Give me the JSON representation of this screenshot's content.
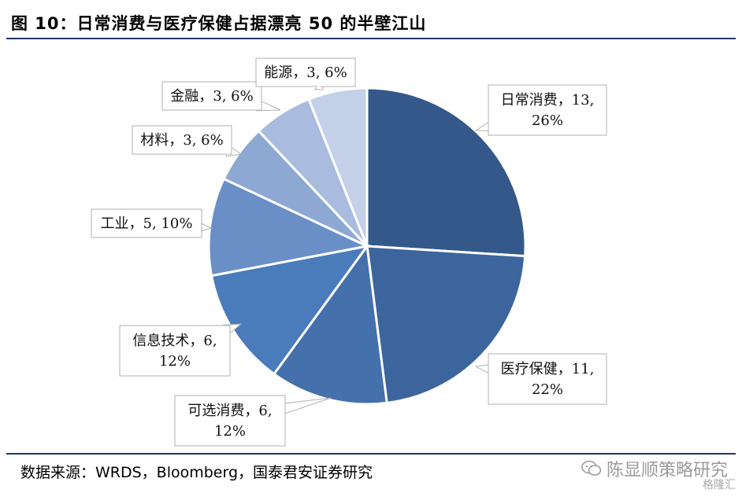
{
  "header": {
    "title": "图 10：日常消费与医疗保健占据漂亮 50 的半壁江山"
  },
  "footer": {
    "source": "数据来源：WRDS，Bloomberg，国泰君安证券研究",
    "watermark": "陈显顺策略研究",
    "watermark2": "格隆汇"
  },
  "chart_data": {
    "type": "pie",
    "start_angle_deg": 0,
    "direction": "clockwise",
    "slices": [
      {
        "label_line1": "日常消费，13,",
        "label_line2": "26%",
        "value": 13,
        "percent": 26,
        "color": "#34588a"
      },
      {
        "label_line1": "医疗保健，11,",
        "label_line2": "22%",
        "value": 11,
        "percent": 22,
        "color": "#3b659c"
      },
      {
        "label_line1": "可选消费，6,",
        "label_line2": "12%",
        "value": 6,
        "percent": 12,
        "color": "#4470ac"
      },
      {
        "label_line1": "信息技术，6,",
        "label_line2": "12%",
        "value": 6,
        "percent": 12,
        "color": "#4a7bbb"
      },
      {
        "label_line1": "工业，5, 10%",
        "label_line2": "",
        "value": 5,
        "percent": 10,
        "color": "#6a8fc6"
      },
      {
        "label_line1": "材料，3, 6%",
        "label_line2": "",
        "value": 3,
        "percent": 6,
        "color": "#8ea8d4"
      },
      {
        "label_line1": "金融，3, 6%",
        "label_line2": "",
        "value": 3,
        "percent": 6,
        "color": "#a9bcdf"
      },
      {
        "label_line1": "能源，3, 6%",
        "label_line2": "",
        "value": 3,
        "percent": 6,
        "color": "#c4d0e8"
      }
    ]
  }
}
